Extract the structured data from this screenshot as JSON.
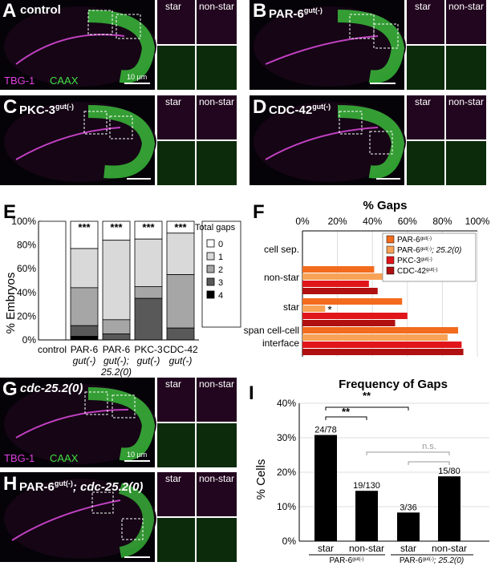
{
  "panels": {
    "A": {
      "letter": "A",
      "condition": "control",
      "inset_star": "star",
      "inset_nonstar": "non-star",
      "stain1": "TBG-1",
      "stain2": "CAAX",
      "scale": "10 µm"
    },
    "B": {
      "letter": "B",
      "condition": "PAR-6",
      "sup": "gut(-)",
      "inset_star": "star",
      "inset_nonstar": "non-star"
    },
    "C": {
      "letter": "C",
      "condition": "PKC-3",
      "sup": "gut(-)",
      "inset_star": "star",
      "inset_nonstar": "non-star"
    },
    "D": {
      "letter": "D",
      "condition": "CDC-42",
      "sup": "gut(-)",
      "inset_star": "star",
      "inset_nonstar": "non-star"
    },
    "G": {
      "letter": "G",
      "condition": "cdc-25.2(0)",
      "inset_star": "star",
      "inset_nonstar": "non-star",
      "stain1": "TBG-1",
      "stain2": "CAAX",
      "scale": "10 µm"
    },
    "H": {
      "letter": "H",
      "condition": "PAR-6",
      "sup": "gut(-)",
      "condition2": "; cdc-25.2(0)",
      "inset_star": "star",
      "inset_nonstar": "non-star"
    }
  },
  "panel_E": {
    "letter": "E",
    "ylabel": "% Embryos",
    "yticks": [
      "0%",
      "20%",
      "40%",
      "60%",
      "80%",
      "100%"
    ],
    "legend_title": "Total gaps",
    "legend": [
      "0",
      "1",
      "2",
      "3",
      "4"
    ],
    "colors": [
      "#ffffff",
      "#d9d9d9",
      "#a6a6a6",
      "#595959",
      "#000000"
    ],
    "cat_labels": [
      {
        "l1": "control",
        "l2": "",
        "l3": ""
      },
      {
        "l1": "PAR-6",
        "l2": "gut(-)",
        "l3": ""
      },
      {
        "l1": "PAR-6",
        "l2": "gut(-);",
        "l3": "25.2(0)"
      },
      {
        "l1": "PKC-3",
        "l2": "gut(-)",
        "l3": ""
      },
      {
        "l1": "CDC-42",
        "l2": "gut(-)",
        "l3": ""
      }
    ],
    "sig": [
      "",
      "***",
      "***",
      "***",
      "***"
    ]
  },
  "panel_F": {
    "letter": "F",
    "title": "% Gaps",
    "xticks": [
      "0%",
      "20%",
      "40%",
      "60%",
      "80%",
      "100%"
    ],
    "categories": [
      "cell sep.",
      "non-star",
      "star",
      "span cell-cell",
      "interface"
    ],
    "legend": [
      {
        "label": "PAR-6",
        "sup": "gut(-)",
        "extra": "",
        "color": "#f36b1e"
      },
      {
        "label": "PAR-6",
        "sup": "gut(-)",
        "extra": "; 25.2(0)",
        "color": "#f7a257"
      },
      {
        "label": "PKC-3",
        "sup": "gut(-)",
        "extra": "",
        "color": "#e0161b"
      },
      {
        "label": "CDC-42",
        "sup": "gut(-)",
        "extra": "",
        "color": "#b01010"
      }
    ],
    "asterisk": "*"
  },
  "panel_I": {
    "letter": "I",
    "title": "Frequency of Gaps",
    "ylabel": "% Cells",
    "yticks": [
      "0%",
      "10%",
      "20%",
      "30%",
      "40%"
    ],
    "bar_labels": [
      "24/78",
      "19/130",
      "3/36",
      "15/80"
    ],
    "xlabels": [
      "star",
      "non-star",
      "star",
      "non-star"
    ],
    "group1": "PAR-6",
    "group1_sup": "gut(-)",
    "group2": "PAR-6",
    "group2_sup": "gut(-)",
    "group2_extra": "; 25.2(0)",
    "sig1": "**",
    "sig2": "**",
    "sig3": "n.s."
  },
  "chart_data": [
    {
      "type": "bar",
      "title": "",
      "ylabel": "% Embryos",
      "ylim": [
        0,
        100
      ],
      "categories": [
        "control",
        "PAR-6 gut(-)",
        "PAR-6 gut(-); 25.2(0)",
        "PKC-3 gut(-)",
        "CDC-42 gut(-)"
      ],
      "stacked": true,
      "series": [
        {
          "name": "0",
          "values": [
            100,
            23,
            16,
            15,
            10
          ]
        },
        {
          "name": "1",
          "values": [
            0,
            33,
            67,
            40,
            35
          ]
        },
        {
          "name": "2",
          "values": [
            0,
            32,
            12,
            10,
            45
          ]
        },
        {
          "name": "3",
          "values": [
            0,
            9,
            5,
            35,
            10
          ]
        },
        {
          "name": "4",
          "values": [
            0,
            3,
            0,
            0,
            0
          ]
        }
      ]
    },
    {
      "type": "bar",
      "orientation": "horizontal",
      "title": "% Gaps",
      "xlim": [
        0,
        100
      ],
      "categories": [
        "cell sep.",
        "non-star",
        "star",
        "span cell-cell interface"
      ],
      "series": [
        {
          "name": "PAR-6gut(-)",
          "values": [
            0,
            41,
            57,
            89
          ]
        },
        {
          "name": "PAR-6gut(-); 25.2(0)",
          "values": [
            0,
            82,
            13,
            83
          ]
        },
        {
          "name": "PKC-3gut(-)",
          "values": [
            0,
            38,
            60,
            91
          ]
        },
        {
          "name": "CDC-42gut(-)",
          "values": [
            0,
            43,
            53,
            92
          ]
        }
      ]
    },
    {
      "type": "bar",
      "title": "Frequency of Gaps",
      "ylabel": "% Cells",
      "ylim": [
        0,
        40
      ],
      "categories": [
        "star",
        "non-star",
        "star",
        "non-star"
      ],
      "values": [
        30.8,
        14.6,
        8.3,
        18.8
      ],
      "labels": [
        "24/78",
        "19/130",
        "3/36",
        "15/80"
      ]
    }
  ]
}
